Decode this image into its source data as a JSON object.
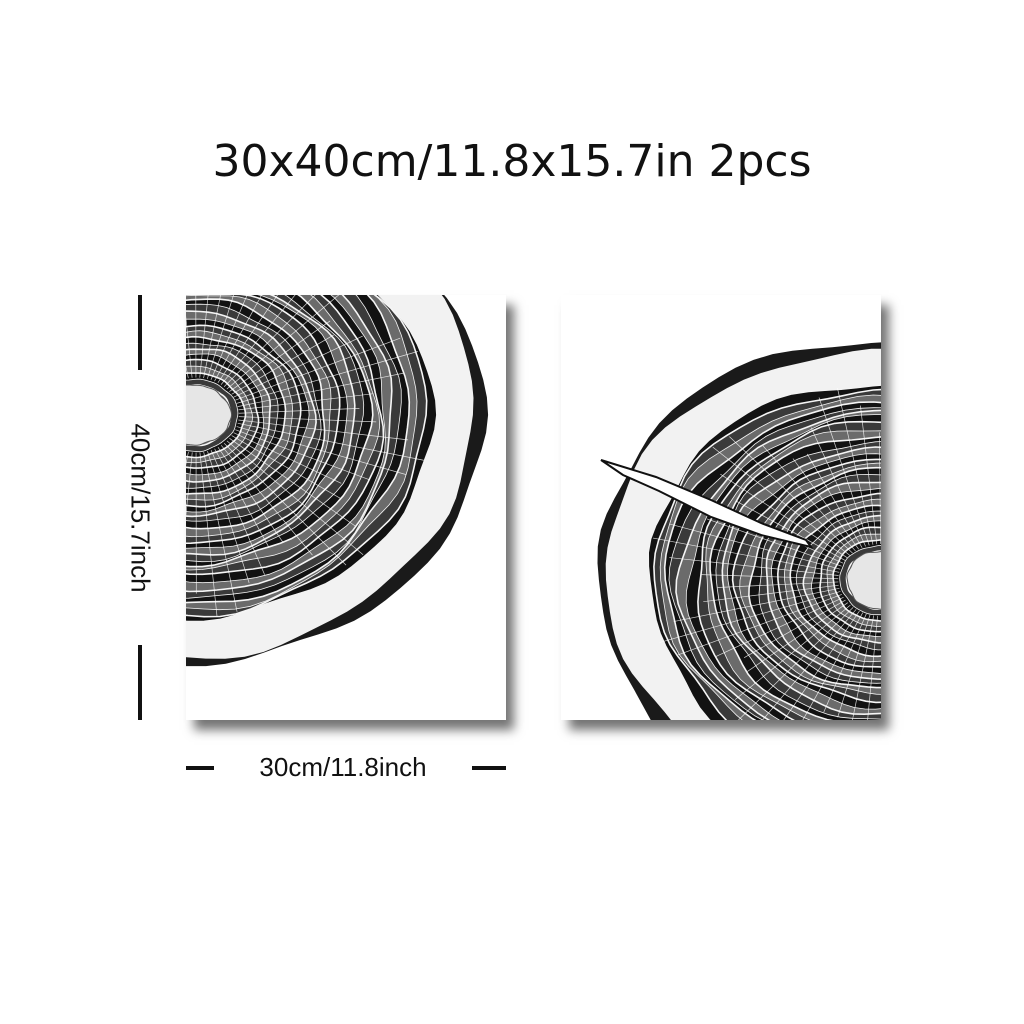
{
  "title": "30x40cm/11.8x15.7in 2pcs",
  "dimensions": {
    "height_label": "40cm/15.7inch",
    "width_label": "30cm/11.8inch"
  },
  "panels": [
    {
      "subject": "tree-ring cross-section, upper-left quarter"
    },
    {
      "subject": "tree-ring cross-section with crack, right half"
    }
  ],
  "colors": {
    "background": "#ffffff",
    "ink": "#111111"
  }
}
